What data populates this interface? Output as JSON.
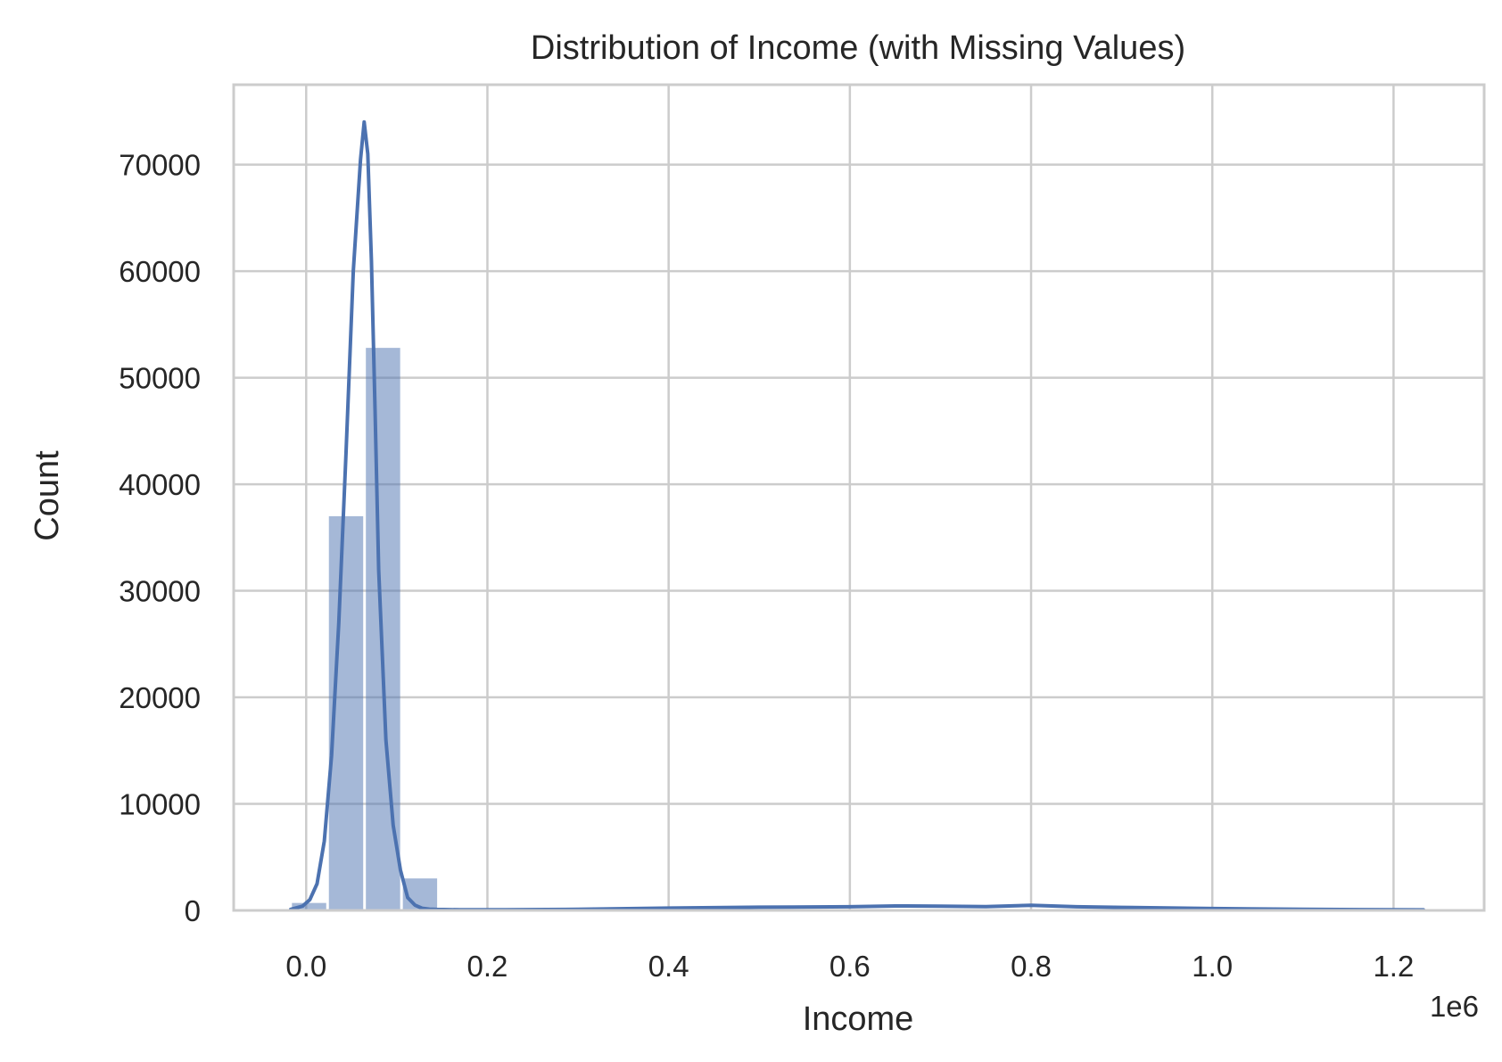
{
  "chart_data": {
    "type": "bar",
    "title": "Distribution of Income (with Missing Values)",
    "xlabel": "Income",
    "ylabel": "Count",
    "x_offset_label": "1e6",
    "x_ticks": [
      0.0,
      0.2,
      0.4,
      0.6,
      0.8,
      1.0,
      1.2
    ],
    "x_tick_labels": [
      "0.0",
      "0.2",
      "0.4",
      "0.6",
      "0.8",
      "1.0",
      "1.2"
    ],
    "y_ticks": [
      0,
      10000,
      20000,
      30000,
      40000,
      50000,
      60000,
      70000
    ],
    "y_tick_labels": [
      "0",
      "10000",
      "20000",
      "30000",
      "40000",
      "50000",
      "60000",
      "70000"
    ],
    "xlim": [
      -0.08,
      1.3
    ],
    "ylim": [
      0,
      77500
    ],
    "grid": true,
    "colors": {
      "bar": "#4c72b0",
      "kde": "#4c72b0",
      "grid": "#cccccc"
    },
    "bins": [
      {
        "start": -0.0172,
        "end": 0.0236,
        "count": 700
      },
      {
        "start": 0.0236,
        "end": 0.0644,
        "count": 37000
      },
      {
        "start": 0.0644,
        "end": 0.1052,
        "count": 52800
      },
      {
        "start": 0.1052,
        "end": 0.146,
        "count": 3000
      },
      {
        "start": 0.146,
        "end": 0.1868,
        "count": 20
      },
      {
        "start": 0.1868,
        "end": 0.2276,
        "count": 5
      },
      {
        "start": 0.2276,
        "end": 0.2684,
        "count": 3
      },
      {
        "start": 0.2684,
        "end": 0.3092,
        "count": 2
      },
      {
        "start": 0.3092,
        "end": 0.35,
        "count": 2
      },
      {
        "start": 0.35,
        "end": 0.3908,
        "count": 2
      },
      {
        "start": 0.3908,
        "end": 0.4316,
        "count": 2
      },
      {
        "start": 0.4316,
        "end": 0.4724,
        "count": 2
      },
      {
        "start": 0.4724,
        "end": 0.5132,
        "count": 2
      },
      {
        "start": 0.5132,
        "end": 0.554,
        "count": 2
      },
      {
        "start": 0.554,
        "end": 0.5948,
        "count": 2
      },
      {
        "start": 0.5948,
        "end": 0.6356,
        "count": 2
      },
      {
        "start": 0.6356,
        "end": 0.6764,
        "count": 2
      },
      {
        "start": 0.6764,
        "end": 0.7172,
        "count": 2
      },
      {
        "start": 0.7172,
        "end": 0.758,
        "count": 2
      },
      {
        "start": 0.758,
        "end": 0.7988,
        "count": 2
      },
      {
        "start": 0.7988,
        "end": 0.8396,
        "count": 2
      },
      {
        "start": 0.8396,
        "end": 0.8804,
        "count": 2
      },
      {
        "start": 0.8804,
        "end": 0.9212,
        "count": 2
      },
      {
        "start": 0.9212,
        "end": 0.962,
        "count": 2
      },
      {
        "start": 0.962,
        "end": 1.0028,
        "count": 2
      },
      {
        "start": 1.0028,
        "end": 1.0436,
        "count": 1
      },
      {
        "start": 1.0436,
        "end": 1.0844,
        "count": 1
      },
      {
        "start": 1.0844,
        "end": 1.1252,
        "count": 1
      },
      {
        "start": 1.1252,
        "end": 1.166,
        "count": 1
      },
      {
        "start": 1.166,
        "end": 1.2068,
        "count": 1
      },
      {
        "start": 1.2068,
        "end": 1.233,
        "count": 1
      }
    ],
    "kde": {
      "x": [
        -0.017,
        -0.004,
        0.004,
        0.012,
        0.02,
        0.028,
        0.036,
        0.044,
        0.052,
        0.06,
        0.064,
        0.068,
        0.072,
        0.076,
        0.08,
        0.088,
        0.096,
        0.104,
        0.112,
        0.12,
        0.128,
        0.136,
        0.144,
        0.152,
        0.17,
        0.22,
        0.3,
        0.4,
        0.5,
        0.6,
        0.65,
        0.7,
        0.75,
        0.8,
        0.85,
        0.9,
        1.0,
        1.1,
        1.2,
        1.233
      ],
      "y": [
        100,
        400,
        1000,
        2500,
        6500,
        14500,
        27000,
        43000,
        60000,
        70500,
        74000,
        71000,
        61000,
        47000,
        32000,
        16000,
        8000,
        3800,
        1200,
        500,
        200,
        120,
        90,
        80,
        60,
        60,
        100,
        220,
        300,
        350,
        420,
        400,
        360,
        480,
        350,
        280,
        180,
        100,
        60,
        50
      ]
    }
  }
}
